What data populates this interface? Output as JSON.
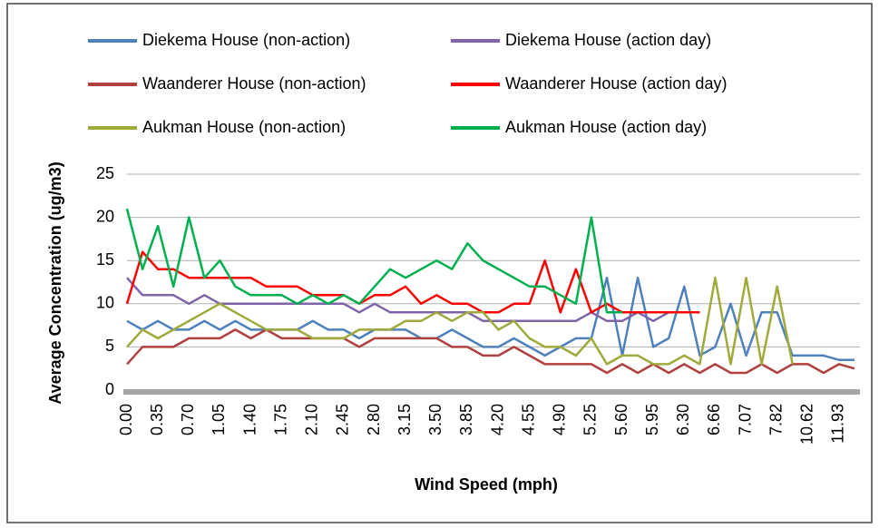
{
  "chart_data": {
    "type": "line",
    "x_label": "Wind Speed (mph)",
    "y_label": "Average Concentration (ug/m3)",
    "categories": [
      "0.00",
      null,
      "0.35",
      null,
      "0.70",
      null,
      "1.05",
      null,
      "1.40",
      null,
      "1.75",
      null,
      "2.10",
      null,
      "2.45",
      null,
      "2.80",
      null,
      "3.15",
      null,
      "3.50",
      null,
      "3.85",
      null,
      "4.20",
      null,
      "4.55",
      null,
      "4.90",
      null,
      "5.25",
      null,
      "5.60",
      null,
      "5.95",
      null,
      "6.30",
      null,
      "6.66",
      null,
      "7.07",
      null,
      "7.82",
      null,
      "10.62",
      null,
      "11.93",
      null
    ],
    "ylim": [
      0,
      25
    ],
    "yticks": [
      0,
      5,
      10,
      15,
      20,
      25
    ],
    "grid": true,
    "series": [
      {
        "name": "Diekema House (non-action)",
        "color": "#4f81bd",
        "values": [
          8,
          7,
          8,
          7,
          7,
          8,
          7,
          8,
          7,
          7,
          7,
          7,
          8,
          7,
          7,
          6,
          7,
          7,
          7,
          6,
          6,
          7,
          6,
          5,
          5,
          6,
          5,
          4,
          5,
          6,
          6,
          13,
          4,
          13,
          5,
          6,
          12,
          4,
          5,
          10,
          4,
          9,
          9,
          4,
          4,
          4,
          3.5,
          3.5
        ]
      },
      {
        "name": "Diekema House (action day)",
        "color": "#7f64a8",
        "values": [
          13,
          11,
          11,
          11,
          10,
          11,
          10,
          10,
          10,
          10,
          10,
          10,
          10,
          10,
          10,
          9,
          10,
          9,
          9,
          9,
          9,
          9,
          9,
          8,
          8,
          8,
          8,
          8,
          8,
          8,
          9,
          8,
          8,
          9,
          8,
          9,
          9,
          9,
          null,
          null,
          null,
          null,
          null,
          null,
          null,
          null,
          null,
          null
        ]
      },
      {
        "name": "Waanderer House (non-action)",
        "color": "#b0413e",
        "values": [
          3,
          5,
          5,
          5,
          6,
          6,
          6,
          7,
          6,
          7,
          6,
          6,
          6,
          6,
          6,
          5,
          6,
          6,
          6,
          6,
          6,
          5,
          5,
          4,
          4,
          5,
          4,
          3,
          3,
          3,
          3,
          2,
          3,
          2,
          3,
          2,
          3,
          2,
          3,
          2,
          2,
          3,
          2,
          3,
          3,
          2,
          3,
          2.5
        ]
      },
      {
        "name": "Waanderer House (action day)",
        "color": "#ff0000",
        "values": [
          10,
          16,
          14,
          14,
          13,
          13,
          13,
          13,
          13,
          12,
          12,
          12,
          11,
          11,
          11,
          10,
          11,
          11,
          12,
          10,
          11,
          10,
          10,
          9,
          9,
          10,
          10,
          15,
          9,
          14,
          9,
          10,
          9,
          9,
          9,
          9,
          9,
          9,
          null,
          null,
          null,
          null,
          null,
          null,
          null,
          null,
          null,
          null
        ]
      },
      {
        "name": "Aukman House (non-action)",
        "color": "#a0aa3c",
        "values": [
          5,
          7,
          6,
          7,
          8,
          9,
          10,
          9,
          8,
          7,
          7,
          7,
          6,
          6,
          6,
          7,
          7,
          7,
          8,
          8,
          9,
          8,
          9,
          9,
          7,
          8,
          6,
          5,
          5,
          4,
          6,
          3,
          4,
          4,
          3,
          3,
          4,
          3,
          13,
          3,
          13,
          3,
          12,
          3,
          null,
          null,
          null,
          null
        ]
      },
      {
        "name": "Aukman House (action day)",
        "color": "#00b050",
        "values": [
          21,
          14,
          19,
          12,
          20,
          13,
          15,
          12,
          11,
          11,
          11,
          10,
          11,
          10,
          11,
          10,
          12,
          14,
          13,
          14,
          15,
          14,
          17,
          15,
          14,
          13,
          12,
          12,
          11,
          10,
          20,
          9,
          9,
          null,
          null,
          null,
          null,
          null,
          null,
          null,
          null,
          null,
          null,
          null,
          null,
          null,
          null,
          null
        ]
      }
    ]
  }
}
